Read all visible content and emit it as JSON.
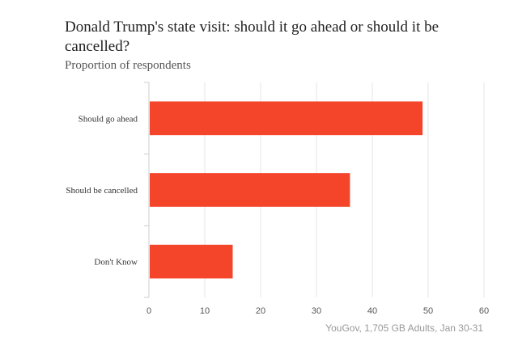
{
  "chart_data": {
    "type": "bar",
    "orientation": "horizontal",
    "title": "Donald Trump's state visit: should it go ahead or should it be cancelled?",
    "subtitle": "Proportion of respondents",
    "categories": [
      "Should go ahead",
      "Should be cancelled",
      "Don't Know"
    ],
    "values": [
      49,
      36,
      15
    ],
    "xlim": [
      0,
      60
    ],
    "xticks": [
      0,
      10,
      20,
      30,
      40,
      50,
      60
    ],
    "xlabel": "",
    "ylabel": "",
    "grid": true,
    "legend": "none",
    "bar_color": "#f4442a",
    "source": "YouGov, 1,705 GB Adults, Jan 30-31"
  }
}
